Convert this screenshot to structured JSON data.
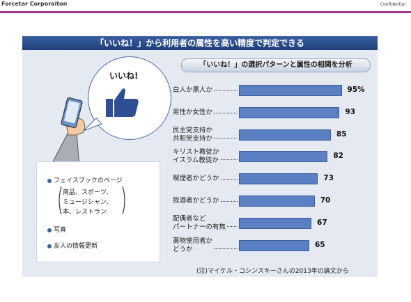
{
  "header": {
    "company": "Forcetar Corporaiton",
    "confidential": "Confidential"
  },
  "slide": {
    "title": "「いいね！」から利用者の属性を高い精度で判定できる",
    "bubble_text": "いいね!",
    "list": [
      "フェイスブックのページ",
      "商品、スポーツ、",
      "ミュージシャン、",
      "本、レストラン",
      "写真",
      "友人の情報更新"
    ],
    "chart_subtitle": "「いいね！」の選択パターンと属性の相関を分析",
    "note": "(注)マイケル・コシンスキーさんの2013年の論文から"
  },
  "colors": {
    "bar": "#5a7fc2",
    "bar_edge": "#3c5f9e",
    "title_bg": "#1e3f7a",
    "accent_line": "#9b3b8f"
  },
  "chart_data": {
    "type": "bar",
    "orientation": "horizontal",
    "title": "「いいね！」の選択パターンと属性の相関を分析",
    "categories": [
      "白人か黒人か",
      "男性か女性か",
      "民主党支持か\n共和党支持か",
      "キリスト教徒か\nイスラム教徒か",
      "喫煙者かどうか",
      "飲酒者かどうか",
      "配偶者など\nパートナーの有無",
      "薬物使用者か\nどうか"
    ],
    "values": [
      95,
      93,
      85,
      82,
      73,
      70,
      67,
      65
    ],
    "value_labels": [
      "95%",
      "93",
      "85",
      "82",
      "73",
      "70",
      "67",
      "65"
    ],
    "xlim": [
      0,
      100
    ]
  }
}
